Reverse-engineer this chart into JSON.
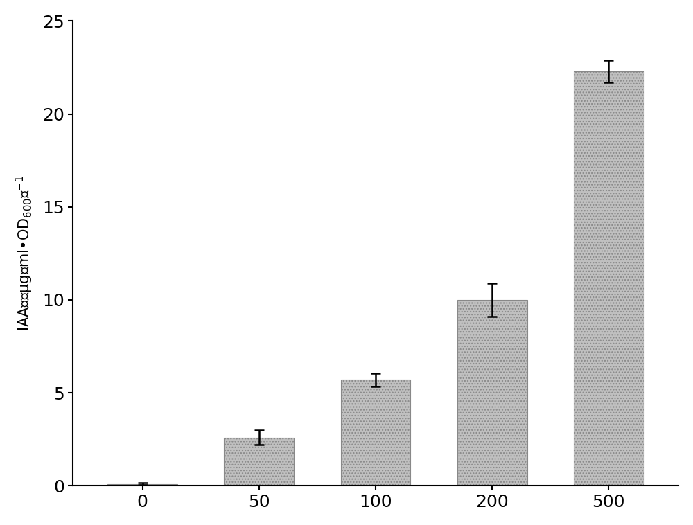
{
  "categories": [
    "0",
    "50",
    "100",
    "200",
    "500"
  ],
  "values": [
    0.1,
    2.6,
    5.7,
    10.0,
    22.3
  ],
  "errors": [
    0.05,
    0.4,
    0.35,
    0.9,
    0.6
  ],
  "bar_color": "#c0c0c0",
  "bar_edgecolor": "#888888",
  "bar_width": 0.6,
  "ylim": [
    0,
    25
  ],
  "yticks": [
    0,
    5,
    10,
    15,
    20,
    25
  ],
  "background_color": "#ffffff",
  "error_capsize": 5,
  "error_linewidth": 1.8,
  "error_color": "black",
  "ylabel_fontsize": 15,
  "tick_fontsize": 18,
  "hatch": "...."
}
